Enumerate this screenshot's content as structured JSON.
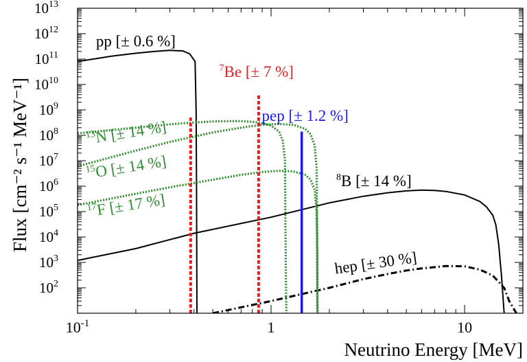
{
  "chart_data": {
    "type": "line",
    "xlabel": "Neutrino Energy [MeV]",
    "ylabel": "Flux [cm⁻² s⁻¹ MeV⁻¹]",
    "xscale": "log",
    "yscale": "log",
    "xlim": [
      0.1,
      20
    ],
    "ylim": [
      10,
      10000000000000.0
    ],
    "grid": false,
    "x_ticks": [
      {
        "value": 0.1,
        "base": "10",
        "exp": "-1"
      },
      {
        "value": 1,
        "base": "1",
        "exp": ""
      },
      {
        "value": 10,
        "base": "10",
        "exp": ""
      }
    ],
    "y_ticks": [
      {
        "value": 100,
        "base": "10",
        "exp": "2"
      },
      {
        "value": 1000,
        "base": "10",
        "exp": "3"
      },
      {
        "value": 10000,
        "base": "10",
        "exp": "4"
      },
      {
        "value": 100000,
        "base": "10",
        "exp": "5"
      },
      {
        "value": 1000000,
        "base": "10",
        "exp": "6"
      },
      {
        "value": 10000000,
        "base": "10",
        "exp": "7"
      },
      {
        "value": 100000000,
        "base": "10",
        "exp": "8"
      },
      {
        "value": 1000000000,
        "base": "10",
        "exp": "9"
      },
      {
        "value": 10000000000,
        "base": "10",
        "exp": "10"
      },
      {
        "value": 100000000000,
        "base": "10",
        "exp": "11"
      },
      {
        "value": 1000000000000,
        "base": "10",
        "exp": "12"
      },
      {
        "value": 10000000000000,
        "base": "10",
        "exp": "13"
      }
    ],
    "series": [
      {
        "name": "pp",
        "color": "#000000",
        "style": "solid",
        "points": [
          [
            0.1,
            80000000000.0
          ],
          [
            0.15,
            130000000000.0
          ],
          [
            0.2,
            170000000000.0
          ],
          [
            0.25,
            200000000000.0
          ],
          [
            0.3,
            220000000000.0
          ],
          [
            0.35,
            210000000000.0
          ],
          [
            0.38,
            160000000000.0
          ],
          [
            0.405,
            80000000000.0
          ],
          [
            0.41,
            1000000000.0
          ],
          [
            0.412,
            1000000.0
          ],
          [
            0.414,
            10
          ]
        ]
      },
      {
        "name": "⁸B",
        "color": "#000000",
        "style": "solid",
        "points": [
          [
            0.1,
            1200.0
          ],
          [
            0.2,
            3500.0
          ],
          [
            0.4,
            14000.0
          ],
          [
            1,
            60000.0
          ],
          [
            2,
            220000.0
          ],
          [
            3,
            400000.0
          ],
          [
            4,
            550000.0
          ],
          [
            5,
            650000.0
          ],
          [
            6,
            700000.0
          ],
          [
            7,
            680000.0
          ],
          [
            8,
            620000.0
          ],
          [
            10,
            450000.0
          ],
          [
            12,
            250000.0
          ],
          [
            13,
            150000.0
          ],
          [
            14,
            70000.0
          ],
          [
            14.5,
            30000.0
          ],
          [
            15,
            5000.0
          ],
          [
            15.5,
            300
          ],
          [
            16,
            10
          ]
        ]
      },
      {
        "name": "hep",
        "color": "#000000",
        "style": "dashdot",
        "points": [
          [
            0.5,
            10
          ],
          [
            1,
            30
          ],
          [
            2,
            100
          ],
          [
            3,
            220
          ],
          [
            4,
            350
          ],
          [
            5,
            480
          ],
          [
            6,
            580
          ],
          [
            8,
            720
          ],
          [
            10,
            700
          ],
          [
            12,
            520
          ],
          [
            14,
            300
          ],
          [
            16,
            100
          ],
          [
            17,
            30
          ],
          [
            18.5,
            10
          ]
        ]
      },
      {
        "name": "¹³N",
        "color": "#2e8b2e",
        "style": "dotted",
        "points": [
          [
            0.1,
            120000000.0
          ],
          [
            0.2,
            200000000.0
          ],
          [
            0.3,
            270000000.0
          ],
          [
            0.4,
            320000000.0
          ],
          [
            0.5,
            350000000.0
          ],
          [
            0.6,
            360000000.0
          ],
          [
            0.7,
            360000000.0
          ],
          [
            0.8,
            340000000.0
          ],
          [
            0.9,
            300000000.0
          ],
          [
            1.0,
            240000000.0
          ],
          [
            1.1,
            140000000.0
          ],
          [
            1.15,
            60000000.0
          ],
          [
            1.18,
            10000000.0
          ],
          [
            1.19,
            1000.0
          ],
          [
            1.199,
            10
          ]
        ]
      },
      {
        "name": "¹⁵O",
        "color": "#2e8b2e",
        "style": "dotted",
        "points": [
          [
            0.1,
            6000000.0
          ],
          [
            0.2,
            25000000.0
          ],
          [
            0.3,
            55000000.0
          ],
          [
            0.5,
            130000000.0
          ],
          [
            0.7,
            200000000.0
          ],
          [
            0.9,
            260000000.0
          ],
          [
            1.1,
            280000000.0
          ],
          [
            1.3,
            260000000.0
          ],
          [
            1.5,
            180000000.0
          ],
          [
            1.6,
            110000000.0
          ],
          [
            1.68,
            40000000.0
          ],
          [
            1.72,
            5000000.0
          ],
          [
            1.73,
            10000.0
          ],
          [
            1.732,
            10
          ]
        ]
      },
      {
        "name": "¹⁷F",
        "color": "#2e8b2e",
        "style": "dotted",
        "points": [
          [
            0.1,
            180000.0
          ],
          [
            0.2,
            500000.0
          ],
          [
            0.3,
            900000.0
          ],
          [
            0.5,
            1800000.0
          ],
          [
            0.7,
            2800000.0
          ],
          [
            0.9,
            3600000.0
          ],
          [
            1.1,
            4000000.0
          ],
          [
            1.3,
            3800000.0
          ],
          [
            1.5,
            2800000.0
          ],
          [
            1.6,
            1800000.0
          ],
          [
            1.68,
            700000.0
          ],
          [
            1.72,
            100000.0
          ],
          [
            1.735,
            1000.0
          ],
          [
            1.74,
            10
          ]
        ]
      }
    ],
    "lines": [
      {
        "name": "⁷Be",
        "color": "#e02020",
        "style": "dashed",
        "energy": 0.862,
        "flux": 4500000000.0
      },
      {
        "name": "⁷Be",
        "color": "#e02020",
        "style": "dashed",
        "energy": 0.384,
        "flux": 500000000.0
      },
      {
        "name": "pep",
        "color": "#1a1aee",
        "style": "solid",
        "energy": 1.44,
        "flux": 140000000.0
      }
    ],
    "labels": [
      {
        "text": "pp [± 0.6 %]",
        "prefix": "",
        "name": "pp",
        "unc": "[± 0.6 %]",
        "color": "#000000",
        "energy": 0.2,
        "flux": 320000000000.0,
        "rotate": 0
      },
      {
        "text": "⁷Be [± 7 %]",
        "prefix": "7",
        "name": "Be",
        "unc": "[± 7 %]",
        "color": "#e02020",
        "energy": 0.84,
        "flux": 20000000000.0,
        "rotate": 0
      },
      {
        "text": "pep [± 1.2 %]",
        "prefix": "",
        "name": "pep",
        "unc": "[± 1.2 %]",
        "color": "#1a1aee",
        "energy": 1.5,
        "flux": 370000000.0,
        "rotate": 0
      },
      {
        "text": "¹³N [± 14 %]",
        "prefix": "13",
        "name": "N",
        "unc": "[± 14 %]",
        "color": "#2e8b2e",
        "energy": 0.18,
        "flux": 80000000.0,
        "rotate": -9
      },
      {
        "text": "¹⁵O [± 14 %]",
        "prefix": "15",
        "name": "O",
        "unc": "[± 14 %]",
        "color": "#2e8b2e",
        "energy": 0.18,
        "flux": 3500000.0,
        "rotate": -9
      },
      {
        "text": "¹⁷F [± 17 %]",
        "prefix": "17",
        "name": "F",
        "unc": "[± 17 %]",
        "color": "#2e8b2e",
        "energy": 0.18,
        "flux": 110000.0,
        "rotate": -9
      },
      {
        "text": "⁸B [± 14 %]",
        "prefix": "8",
        "name": "B",
        "unc": "[± 14 %]",
        "color": "#000000",
        "energy": 3.4,
        "flux": 1000000.0,
        "rotate": 0
      },
      {
        "text": "hep [± 30 %]",
        "prefix": "",
        "name": "hep",
        "unc": "[± 30 %]",
        "color": "#000000",
        "energy": 3.5,
        "flux": 600,
        "rotate": -8
      }
    ]
  }
}
